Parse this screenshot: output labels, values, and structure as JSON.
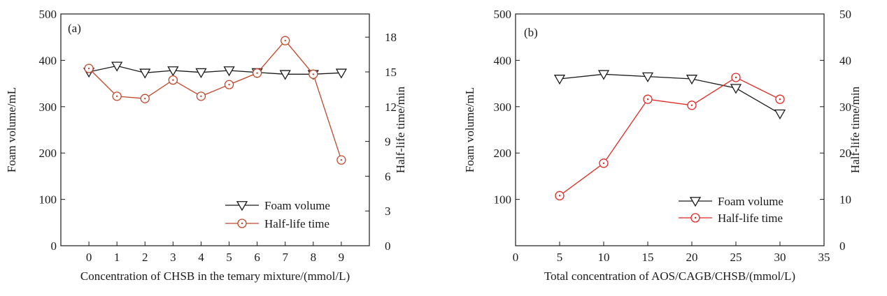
{
  "chart_data": [
    {
      "type": "line",
      "panel_label": "(a)",
      "xlabel": "Concentration of CHSB in the temary mixture/(mmol/L)",
      "ylabel_left": "Foam volume/mL",
      "ylabel_right": "Half-life time/min",
      "x": [
        0,
        1,
        2,
        3,
        4,
        5,
        6,
        7,
        8,
        9
      ],
      "xlim": [
        -1,
        10
      ],
      "xticks": [
        0,
        1,
        2,
        3,
        4,
        5,
        6,
        7,
        8,
        9
      ],
      "ylim_left": [
        0,
        500
      ],
      "yticks_left": [
        0,
        100,
        200,
        300,
        400,
        500
      ],
      "ylim_right": [
        0,
        20
      ],
      "yticks_right": [
        0,
        3,
        6,
        9,
        12,
        15,
        18
      ],
      "series": [
        {
          "name": "Foam volume",
          "axis": "left",
          "marker": "triangle-down",
          "color": "#1a1a1a",
          "values": [
            375,
            388,
            373,
            378,
            374,
            378,
            374,
            370,
            370,
            373
          ]
        },
        {
          "name": "Half-life time",
          "axis": "right",
          "marker": "circle-dot",
          "color": "#c0472a",
          "values": [
            15.3,
            12.9,
            12.7,
            14.3,
            12.9,
            13.9,
            14.9,
            17.7,
            14.8,
            7.4
          ]
        }
      ],
      "legend_position": "bottom-right"
    },
    {
      "type": "line",
      "panel_label": "(b)",
      "xlabel": "Total concentration of AOS/CAGB/CHSB/(mmol/L)",
      "ylabel_left": "Foam volume/mL",
      "ylabel_right": "Half-life time/min",
      "x": [
        5,
        10,
        15,
        20,
        25,
        30
      ],
      "xlim": [
        0,
        35
      ],
      "xticks": [
        0,
        5,
        10,
        15,
        20,
        25,
        30,
        35
      ],
      "ylim_left": [
        0,
        500
      ],
      "yticks_left": [
        100,
        200,
        300,
        400,
        500
      ],
      "ylim_right": [
        0,
        50
      ],
      "yticks_right": [
        0,
        10,
        20,
        30,
        40,
        50
      ],
      "series": [
        {
          "name": "Foam volume",
          "axis": "left",
          "marker": "triangle-down",
          "color": "#1a1a1a",
          "values": [
            360,
            370,
            365,
            360,
            340,
            285
          ]
        },
        {
          "name": "Half-life time",
          "axis": "right",
          "marker": "circle-dot",
          "color": "#e0261e",
          "values": [
            10.8,
            17.8,
            31.6,
            30.3,
            36.3,
            31.6
          ]
        }
      ],
      "legend_position": "bottom-right"
    }
  ]
}
